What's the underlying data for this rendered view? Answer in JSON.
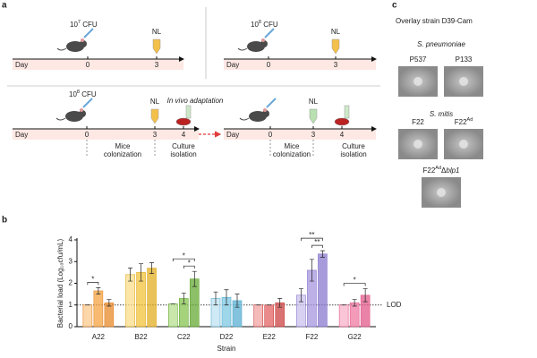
{
  "panel_a": {
    "label": "a",
    "schemes": [
      {
        "dose": {
          "base": "10",
          "sup": "7",
          "rest": " CFU"
        },
        "tube": "NL",
        "axis": "Day",
        "days": [
          "0",
          "3"
        ]
      },
      {
        "dose": {
          "base": "10",
          "sup": "8",
          "rest": " CFU"
        },
        "tube": "NL",
        "axis": "Day",
        "days": [
          "0",
          "3"
        ]
      }
    ],
    "adaptation_title": "In vivo adaptation",
    "steps": [
      {
        "dose": {
          "base": "10",
          "sup": "8",
          "rest": " CFU"
        },
        "tube": "NL",
        "axis": "Day",
        "days": [
          "0",
          "3",
          "4"
        ],
        "phases": [
          "Mice colonization",
          "Culture isolation"
        ]
      },
      {
        "tube": "NL",
        "axis": "Day",
        "days": [
          "0",
          "3",
          "4"
        ],
        "phases": [
          "Mice colonization",
          "Culture isolation"
        ]
      }
    ]
  },
  "panel_c": {
    "label": "c",
    "title": "Overlay strain D39-Cam",
    "groups": [
      {
        "species": "S. pneumoniae",
        "strains": [
          {
            "base": "P537"
          },
          {
            "base": "P133"
          }
        ]
      },
      {
        "species": "S. mitis",
        "strains": [
          {
            "base": "F22"
          },
          {
            "base": "F22",
            "sup": "Ad"
          },
          {
            "base": "F22",
            "sup": "Ad",
            "rest": "Δ",
            "gene": "blp1"
          }
        ]
      }
    ]
  },
  "panel_b": {
    "label": "b",
    "type": "bar",
    "ylabel": "Bacterial load (Log₁₀cfu/mL)",
    "xlabel": "Strain",
    "categories": [
      "A22",
      "B22",
      "C22",
      "D22",
      "E22",
      "F22",
      "G22"
    ],
    "category_colors": [
      [
        "#f9c98e",
        "#f4a340",
        "#e8892a"
      ],
      [
        "#f9de8a",
        "#f3c33c",
        "#e2ae22"
      ],
      [
        "#b7df8f",
        "#86c44f",
        "#66a934"
      ],
      [
        "#bfe3f2",
        "#7ec8e3",
        "#5aafd1"
      ],
      [
        "#f2a3a3",
        "#e36363",
        "#cc4444"
      ],
      [
        "#cbc1ee",
        "#a596dd",
        "#8b79cf"
      ],
      [
        "#f8b2ca",
        "#f07aa3",
        "#e15a89"
      ]
    ],
    "series": [
      {
        "values": [
          1.0,
          2.4,
          1.05,
          1.3,
          1.0,
          1.45,
          1.0
        ],
        "errors": [
          0,
          0.3,
          0,
          0.3,
          0,
          0.3,
          0
        ]
      },
      {
        "values": [
          1.65,
          2.5,
          1.3,
          1.35,
          1.0,
          2.6,
          1.1
        ],
        "errors": [
          0.15,
          0.4,
          0.25,
          0.35,
          0,
          0.5,
          0.15
        ]
      },
      {
        "values": [
          1.1,
          2.7,
          2.2,
          1.2,
          1.1,
          3.35,
          1.45
        ],
        "errors": [
          0.15,
          0.25,
          0.35,
          0.3,
          0.2,
          0.15,
          0.3
        ]
      }
    ],
    "ylim": [
      0,
      4
    ],
    "yticks": [
      0,
      1,
      2,
      3,
      4
    ],
    "lod": {
      "value": 1,
      "label": "LOD"
    },
    "significance": [
      {
        "category": 0,
        "from": 0,
        "to": 1,
        "label": "*"
      },
      {
        "category": 2,
        "from": 0,
        "to": 2,
        "label": "*"
      },
      {
        "category": 2,
        "from": 1,
        "to": 2,
        "label": "*"
      },
      {
        "category": 5,
        "from": 0,
        "to": 2,
        "label": "**"
      },
      {
        "category": 5,
        "from": 1,
        "to": 2,
        "label": "**"
      },
      {
        "category": 6,
        "from": 0,
        "to": 2,
        "label": "*"
      }
    ]
  }
}
